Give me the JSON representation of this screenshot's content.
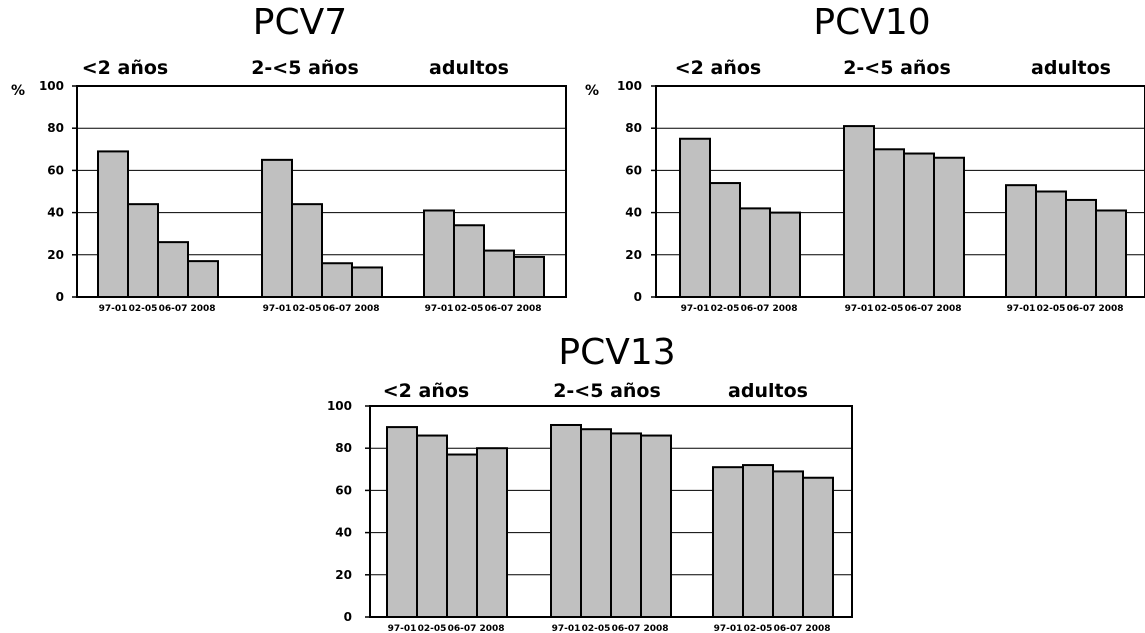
{
  "chart_data": [
    {
      "type": "bar",
      "title": "PCV7",
      "ylabel": "%",
      "ylim": [
        0,
        100
      ],
      "yticks": [
        0,
        20,
        40,
        60,
        80,
        100
      ],
      "grid": true,
      "groups": [
        {
          "label": "<2 años",
          "categories": [
            "97-01",
            "02-05",
            "06-07",
            "2008"
          ],
          "values": [
            69,
            44,
            26,
            17
          ]
        },
        {
          "label": "2-<5 años",
          "categories": [
            "97-01",
            "02-05",
            "06-07",
            "2008"
          ],
          "values": [
            65,
            44,
            16,
            14
          ]
        },
        {
          "label": "adultos",
          "categories": [
            "97-01",
            "02-05",
            "06-07",
            "2008"
          ],
          "values": [
            41,
            34,
            22,
            19
          ]
        }
      ]
    },
    {
      "type": "bar",
      "title": "PCV10",
      "ylabel": "%",
      "ylim": [
        0,
        100
      ],
      "yticks": [
        0,
        20,
        40,
        60,
        80,
        100
      ],
      "grid": true,
      "groups": [
        {
          "label": "<2 años",
          "categories": [
            "97-01",
            "02-05",
            "06-07",
            "2008"
          ],
          "values": [
            75,
            54,
            42,
            40
          ]
        },
        {
          "label": "2-<5 años",
          "categories": [
            "97-01",
            "02-05",
            "06-07",
            "2008"
          ],
          "values": [
            81,
            70,
            68,
            66
          ]
        },
        {
          "label": "adultos",
          "categories": [
            "97-01",
            "02-05",
            "06-07",
            "2008"
          ],
          "values": [
            53,
            50,
            46,
            41
          ]
        }
      ]
    },
    {
      "type": "bar",
      "title": "PCV13",
      "ylabel": "",
      "ylim": [
        0,
        100
      ],
      "yticks": [
        0,
        20,
        40,
        60,
        80,
        100
      ],
      "grid": true,
      "groups": [
        {
          "label": "<2 años",
          "categories": [
            "97-01",
            "02-05",
            "06-07",
            "2008"
          ],
          "values": [
            90,
            86,
            77,
            80
          ]
        },
        {
          "label": "2-<5 años",
          "categories": [
            "97-01",
            "02-05",
            "06-07",
            "2008"
          ],
          "values": [
            91,
            89,
            87,
            86
          ]
        },
        {
          "label": "adultos",
          "categories": [
            "97-01",
            "02-05",
            "06-07",
            "2008"
          ],
          "values": [
            71,
            72,
            69,
            66
          ]
        }
      ]
    }
  ],
  "colors": {
    "bar_fill": "#c0c0c0",
    "bar_stroke": "#000000",
    "grid": "#000000"
  }
}
